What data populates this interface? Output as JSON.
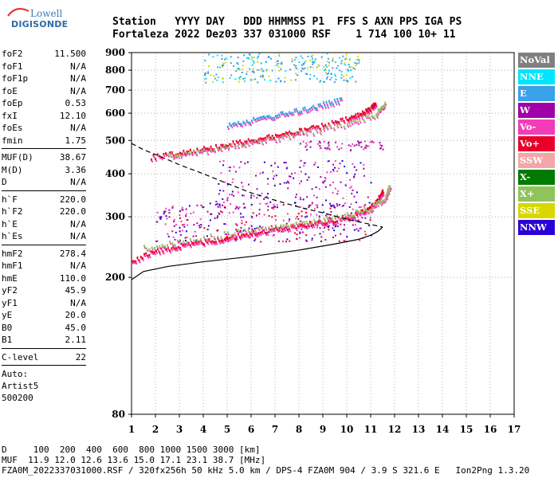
{
  "logo": {
    "top": "Lowell",
    "bottom": "DIGISONDE"
  },
  "header": {
    "line1": "Station   YYYY DAY   DDD HHMMSS P1  FFS S AXN PPS IGA PS",
    "line2": "Fortaleza 2022 Dez03 337 031000 RSF    1 714 100 10+ 11"
  },
  "params": {
    "group1": [
      {
        "k": "foF2",
        "v": "11.500"
      },
      {
        "k": "foF1",
        "v": "N/A"
      },
      {
        "k": "foF1p",
        "v": "N/A"
      },
      {
        "k": "foE",
        "v": "N/A"
      },
      {
        "k": "foEp",
        "v": "0.53"
      },
      {
        "k": "fxI",
        "v": "12.10"
      },
      {
        "k": "foEs",
        "v": "N/A"
      },
      {
        "k": "fmin",
        "v": "1.75"
      }
    ],
    "group2": [
      {
        "k": "MUF(D)",
        "v": "38.67"
      },
      {
        "k": "M(D)",
        "v": "3.36"
      },
      {
        "k": "D",
        "v": "N/A"
      }
    ],
    "group3": [
      {
        "k": "h`F",
        "v": "220.0"
      },
      {
        "k": "h`F2",
        "v": "220.0"
      },
      {
        "k": "h`E",
        "v": "N/A"
      },
      {
        "k": "h`Es",
        "v": "N/A"
      }
    ],
    "group4": [
      {
        "k": "hmF2",
        "v": "278.4"
      },
      {
        "k": "hmF1",
        "v": "N/A"
      },
      {
        "k": "hmE",
        "v": "110.0"
      },
      {
        "k": "yF2",
        "v": "45.9"
      },
      {
        "k": "yF1",
        "v": "N/A"
      },
      {
        "k": "yE",
        "v": "20.0"
      },
      {
        "k": "B0",
        "v": "45.0"
      },
      {
        "k": "B1",
        "v": "2.11"
      }
    ],
    "group5": [
      {
        "k": "C-level",
        "v": "22"
      }
    ],
    "auto": [
      "Auto:",
      "Artist5",
      "500200"
    ]
  },
  "legend": [
    {
      "label": "NoVal",
      "color": "#808080"
    },
    {
      "label": "NNE",
      "color": "#00e5ff"
    },
    {
      "label": "E",
      "color": "#3aa0e8"
    },
    {
      "label": "W",
      "color": "#a000a8"
    },
    {
      "label": "Vo-",
      "color": "#f23cb8"
    },
    {
      "label": "Vo+",
      "color": "#e8002a"
    },
    {
      "label": "SSW",
      "color": "#f4a6a6"
    },
    {
      "label": "X-",
      "color": "#007a00"
    },
    {
      "label": "X+",
      "color": "#8fc45a"
    },
    {
      "label": "SSE",
      "color": "#d8d800"
    },
    {
      "label": "NNW",
      "color": "#2a00d8"
    }
  ],
  "bottom": {
    "line1": "D     100  200  400  600  800 1000 1500 3000 [km]",
    "line2": "MUF  11.9 12.0 12.6 13.6 15.0 17.1 23.1 38.7 [MHz]",
    "line3": "FZA0M_2022337031000.RSF / 320fx256h 50 kHz 5.0 km / DPS-4 FZA0M 904 / 3.9 S 321.6 E   Ion2Png 1.3.20"
  },
  "chart_data": {
    "type": "scatter",
    "title": "",
    "xlabel": "",
    "ylabel": "",
    "xlim": [
      1,
      17
    ],
    "ylim": [
      80,
      900
    ],
    "y_scale": "log",
    "x_ticks": [
      1,
      2,
      3,
      4,
      5,
      6,
      7,
      8,
      9,
      10,
      11,
      12,
      13,
      14,
      15,
      16,
      17
    ],
    "y_ticks": [
      80,
      200,
      300,
      400,
      500,
      600,
      700,
      800,
      900
    ],
    "grid": "dotted",
    "traces": [
      {
        "name": "F2 O-trace",
        "color": "#e8002a",
        "x": [
          1.0,
          2.0,
          3.0,
          4.0,
          5.0,
          6.0,
          7.0,
          8.0,
          9.0,
          10.0,
          10.8,
          11.3,
          11.5
        ],
        "y": [
          225,
          240,
          248,
          255,
          262,
          270,
          278,
          285,
          292,
          300,
          315,
          340,
          360
        ]
      },
      {
        "name": "F2 X-trace",
        "color": "#8fc45a",
        "x": [
          1.5,
          3.0,
          5.0,
          7.0,
          8.5,
          10.0,
          11.0,
          11.6,
          11.8
        ],
        "y": [
          245,
          255,
          270,
          282,
          292,
          305,
          320,
          345,
          375
        ]
      },
      {
        "name": "2F O-trace",
        "color": "#e8002a",
        "x": [
          1.8,
          3.0,
          4.0,
          5.0,
          6.0,
          7.0,
          8.0,
          9.0,
          10.0,
          10.6,
          11.0,
          11.2
        ],
        "y": [
          450,
          465,
          475,
          490,
          505,
          520,
          535,
          555,
          580,
          600,
          625,
          650
        ]
      },
      {
        "name": "2F X-trace",
        "color": "#8fc45a",
        "x": [
          2.5,
          4.0,
          6.0,
          8.0,
          10.0,
          11.2,
          11.6
        ],
        "y": [
          455,
          470,
          495,
          525,
          560,
          600,
          650
        ]
      },
      {
        "name": "3F echoes",
        "color": "#3aa0e8",
        "x": [
          5.0,
          6.0,
          7.0,
          8.0,
          9.0,
          9.8
        ],
        "y": [
          560,
          575,
          595,
          615,
          640,
          660
        ]
      }
    ],
    "profile_solid": {
      "x": [
        1.0,
        1.5,
        2.5,
        4.0,
        6.0,
        8.0,
        9.5,
        10.5,
        11.0,
        11.3,
        11.5
      ],
      "y": [
        197,
        208,
        215,
        222,
        230,
        240,
        250,
        258,
        265,
        272,
        280
      ]
    },
    "profile_dashed": {
      "x": [
        1.0,
        1.5,
        2.0,
        2.5,
        3.0,
        4.0,
        5.0,
        6.0,
        7.0,
        8.0,
        9.0,
        10.0,
        11.0,
        11.5
      ],
      "y": [
        490,
        470,
        455,
        440,
        425,
        400,
        375,
        352,
        335,
        320,
        308,
        295,
        285,
        280
      ]
    }
  }
}
